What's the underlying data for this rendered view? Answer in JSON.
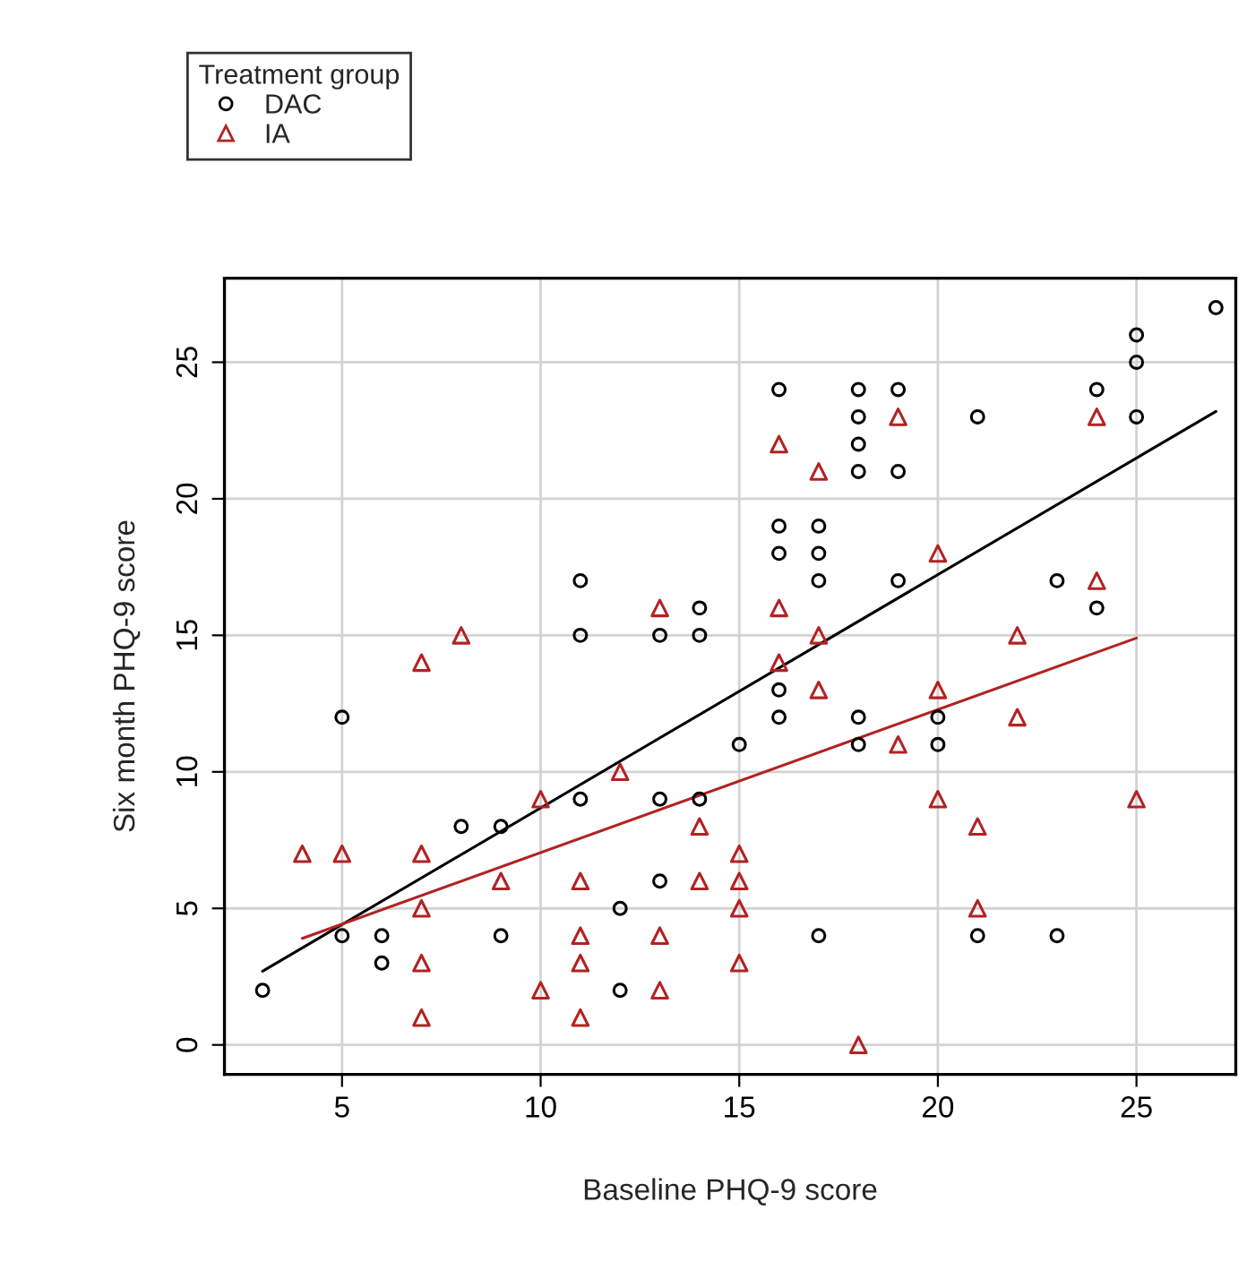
{
  "chart_data": {
    "type": "scatter",
    "xlabel": "Baseline PHQ-9 score",
    "ylabel": "Six month PHQ-9 score",
    "legend_title": "Treatment group",
    "legend": "top left",
    "grid": true,
    "xlim": [
      2.04,
      27.5
    ],
    "xticks": [
      5,
      10,
      15,
      20,
      25
    ],
    "ylim": [
      -1.08,
      28.08
    ],
    "yticks": [
      0,
      5,
      10,
      15,
      20,
      25
    ],
    "series": [
      {
        "name": "DAC",
        "color": "#000000",
        "marker": "circle",
        "x": [
          3,
          5,
          5,
          6,
          6,
          8,
          9,
          9,
          11,
          11,
          11,
          12,
          12,
          13,
          13,
          13,
          14,
          14,
          14,
          15,
          16,
          16,
          16,
          16,
          16,
          17,
          17,
          17,
          17,
          18,
          18,
          18,
          18,
          18,
          18,
          19,
          19,
          19,
          20,
          20,
          21,
          21,
          23,
          23,
          24,
          24,
          25,
          25,
          25,
          27
        ],
        "values": [
          2,
          4,
          12,
          4,
          3,
          8,
          8,
          4,
          17,
          15,
          9,
          5,
          2,
          15,
          9,
          6,
          16,
          15,
          9,
          11,
          24,
          19,
          18,
          13,
          12,
          19,
          18,
          17,
          4,
          24,
          23,
          22,
          21,
          12,
          11,
          24,
          21,
          17,
          12,
          11,
          23,
          4,
          17,
          4,
          24,
          16,
          26,
          25,
          23,
          27
        ]
      },
      {
        "name": "IA",
        "color": "#b22222",
        "marker": "triangle",
        "x": [
          4,
          5,
          7,
          7,
          7,
          7,
          7,
          8,
          9,
          10,
          10,
          11,
          11,
          11,
          11,
          12,
          13,
          13,
          13,
          14,
          14,
          15,
          15,
          15,
          15,
          16,
          16,
          16,
          17,
          17,
          17,
          18,
          19,
          19,
          20,
          20,
          20,
          21,
          21,
          22,
          22,
          24,
          24,
          25
        ],
        "values": [
          7,
          7,
          14,
          7,
          5,
          3,
          1,
          15,
          6,
          9,
          2,
          6,
          4,
          3,
          1,
          10,
          16,
          4,
          2,
          8,
          6,
          7,
          6,
          5,
          3,
          22,
          16,
          14,
          21,
          15,
          13,
          0,
          23,
          11,
          18,
          13,
          9,
          8,
          5,
          15,
          12,
          23,
          17,
          9
        ]
      },
      {
        "type": "line",
        "color": "#000000",
        "marker": "none",
        "x": [
          3,
          27
        ],
        "values": [
          2.7,
          23.2
        ]
      },
      {
        "type": "line",
        "color": "#b22222",
        "marker": "none",
        "x": [
          4,
          25
        ],
        "values": [
          3.9,
          14.9
        ]
      }
    ]
  }
}
